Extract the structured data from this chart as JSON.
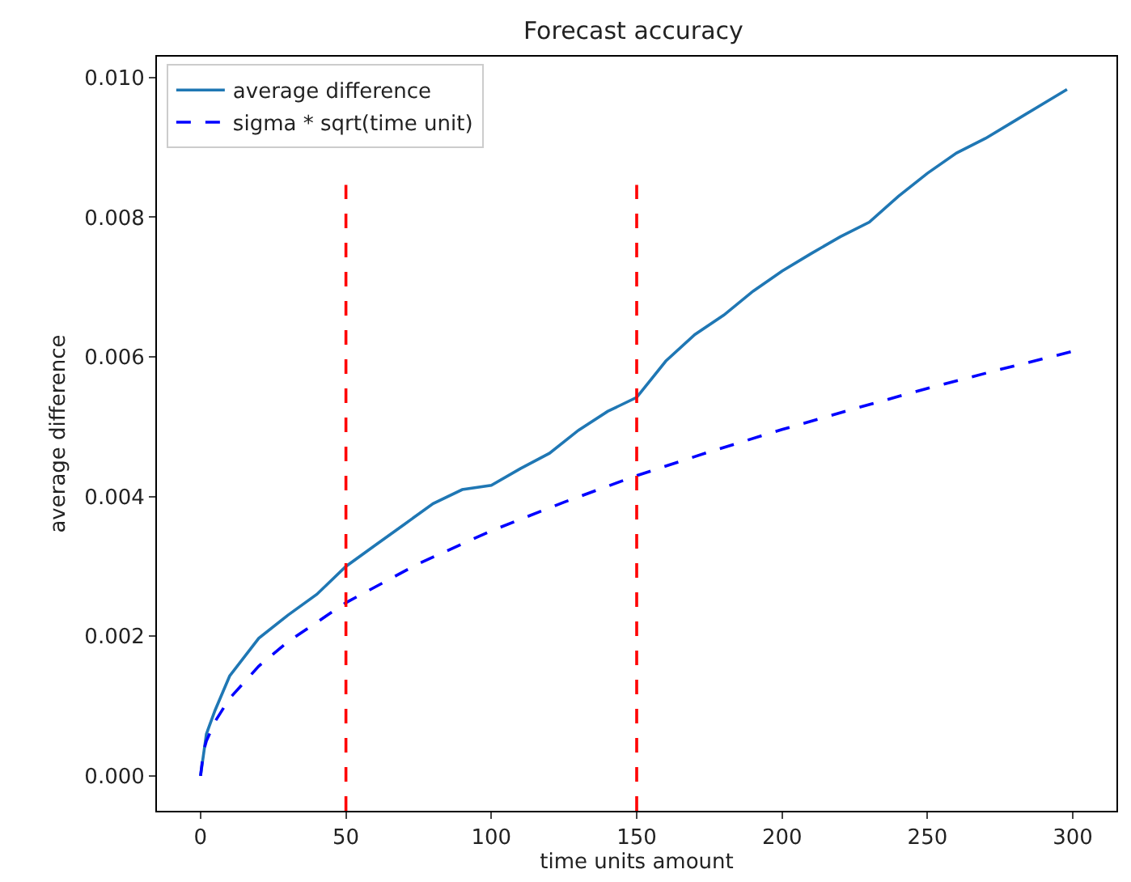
{
  "chart_data": {
    "type": "line",
    "title": "Forecast accuracy",
    "xlabel": "time units amount",
    "ylabel": "average difference",
    "xlim": [
      -15,
      315
    ],
    "xticks": [
      0,
      50,
      100,
      150,
      200,
      250,
      300
    ],
    "ylim": [
      -0.0005,
      0.0103
    ],
    "yticks": [
      {
        "value": 0,
        "label": "0.000"
      },
      {
        "value": 0.002,
        "label": "0.002"
      },
      {
        "value": 0.004,
        "label": "0.004"
      },
      {
        "value": 0.006,
        "label": "0.006"
      },
      {
        "value": 0.008,
        "label": "0.008"
      },
      {
        "value": 0.01,
        "label": "0.010"
      }
    ],
    "legend": "top left",
    "marker": "none",
    "series": [
      {
        "name": "average difference",
        "color": "#1f77b4",
        "line_style": "solid",
        "x": [
          0,
          2,
          5,
          10,
          20,
          30,
          40,
          50,
          60,
          70,
          80,
          90,
          100,
          110,
          120,
          130,
          140,
          150,
          160,
          170,
          180,
          190,
          200,
          210,
          220,
          230,
          240,
          250,
          260,
          270,
          280,
          290,
          298
        ],
        "values": [
          0,
          0.0006,
          0.00094,
          0.00143,
          0.00197,
          0.0023,
          0.0026,
          0.003,
          0.0033,
          0.0036,
          0.0039,
          0.0041,
          0.00416,
          0.0044,
          0.00462,
          0.00495,
          0.00522,
          0.00542,
          0.00594,
          0.00632,
          0.0066,
          0.00694,
          0.00723,
          0.00748,
          0.00772,
          0.00793,
          0.0083,
          0.00863,
          0.00892,
          0.00913,
          0.00938,
          0.00963,
          0.00983
        ]
      },
      {
        "name": "sigma * sqrt(time unit)",
        "color": "#0000ff",
        "line_style": "dashed",
        "x": [
          0,
          1,
          2,
          5,
          10,
          20,
          30,
          50,
          75,
          100,
          125,
          150,
          175,
          200,
          225,
          250,
          275,
          300
        ],
        "values": [
          0,
          0.00035,
          0.0005,
          0.00078,
          0.00111,
          0.00157,
          0.00192,
          0.00248,
          0.00304,
          0.00351,
          0.00392,
          0.0043,
          0.00464,
          0.00496,
          0.00526,
          0.00555,
          0.00582,
          0.00608
        ]
      }
    ],
    "ref_lines": [
      {
        "axis": "x",
        "value": 50,
        "color": "#ff0000",
        "line_style": "dashed"
      },
      {
        "axis": "x",
        "value": 150,
        "color": "#ff0000",
        "line_style": "dashed"
      }
    ]
  }
}
